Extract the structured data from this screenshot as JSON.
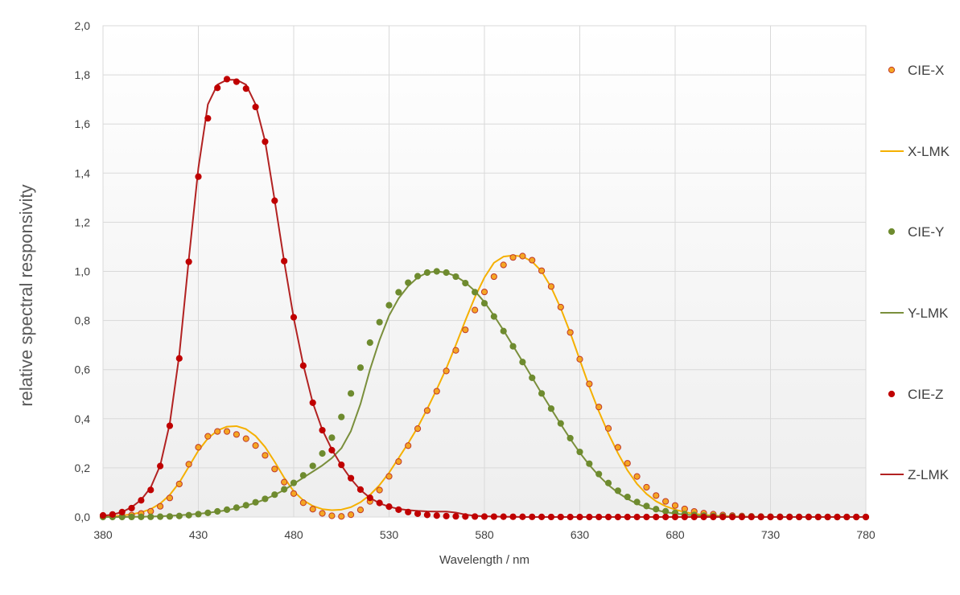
{
  "chart_data": {
    "type": "line",
    "title": "",
    "xlabel": "Wavelength / nm",
    "ylabel": "relative spectral responsivity",
    "xlim": [
      380,
      780
    ],
    "ylim": [
      0,
      2
    ],
    "xticks": [
      380,
      430,
      480,
      530,
      580,
      630,
      680,
      730,
      780
    ],
    "xtick_labels": [
      "380",
      "430",
      "480",
      "530",
      "580",
      "630",
      "680",
      "730",
      "780"
    ],
    "yticks": [
      0,
      0.2,
      0.4,
      0.6,
      0.8,
      1.0,
      1.2,
      1.4,
      1.6,
      1.8,
      2.0
    ],
    "ytick_labels": [
      "0,0",
      "0,2",
      "0,4",
      "0,6",
      "0,8",
      "1,0",
      "1,2",
      "1,4",
      "1,6",
      "1,8",
      "2,0"
    ],
    "grid": true,
    "legend_position": "right",
    "x": [
      380,
      385,
      390,
      395,
      400,
      405,
      410,
      415,
      420,
      425,
      430,
      435,
      440,
      445,
      450,
      455,
      460,
      465,
      470,
      475,
      480,
      485,
      490,
      495,
      500,
      505,
      510,
      515,
      520,
      525,
      530,
      535,
      540,
      545,
      550,
      555,
      560,
      565,
      570,
      575,
      580,
      585,
      590,
      595,
      600,
      605,
      610,
      615,
      620,
      625,
      630,
      635,
      640,
      645,
      650,
      655,
      660,
      665,
      670,
      675,
      680,
      685,
      690,
      695,
      700,
      705,
      710,
      715,
      720,
      725,
      730,
      735,
      740,
      745,
      750,
      755,
      760,
      765,
      770,
      775,
      780
    ],
    "series": [
      {
        "name": "CIE-X",
        "kind": "markers",
        "color": "#f5a623",
        "edge": "#c0392b",
        "values": [
          0.0014,
          0.0022,
          0.0042,
          0.0077,
          0.0143,
          0.0232,
          0.0435,
          0.0776,
          0.1344,
          0.2148,
          0.2839,
          0.3285,
          0.3483,
          0.3481,
          0.3362,
          0.3187,
          0.2908,
          0.2511,
          0.1954,
          0.1421,
          0.0956,
          0.058,
          0.032,
          0.0147,
          0.0049,
          0.0024,
          0.0093,
          0.0291,
          0.0633,
          0.1096,
          0.1655,
          0.2257,
          0.2904,
          0.3597,
          0.4334,
          0.5121,
          0.5945,
          0.6784,
          0.7621,
          0.8425,
          0.9163,
          0.9786,
          1.0263,
          1.0567,
          1.0622,
          1.0456,
          1.0026,
          0.9384,
          0.8544,
          0.7514,
          0.6424,
          0.5419,
          0.4479,
          0.3608,
          0.2835,
          0.2187,
          0.1649,
          0.1212,
          0.0874,
          0.0636,
          0.0468,
          0.0329,
          0.0227,
          0.0158,
          0.0114,
          0.0081,
          0.0058,
          0.0041,
          0.0029,
          0.002,
          0.0014,
          0.001,
          0.0007,
          0.0005,
          0.0003,
          0.0002,
          0.0002,
          0.0001,
          0.0001,
          0.0001,
          0.0
        ]
      },
      {
        "name": "X-LMK",
        "kind": "line",
        "color": "#f5b000",
        "values": [
          0.002,
          0.003,
          0.006,
          0.011,
          0.019,
          0.032,
          0.055,
          0.09,
          0.14,
          0.205,
          0.27,
          0.32,
          0.352,
          0.368,
          0.37,
          0.358,
          0.33,
          0.285,
          0.225,
          0.16,
          0.105,
          0.068,
          0.045,
          0.032,
          0.028,
          0.03,
          0.04,
          0.06,
          0.09,
          0.13,
          0.18,
          0.24,
          0.3,
          0.365,
          0.44,
          0.52,
          0.605,
          0.7,
          0.8,
          0.895,
          0.975,
          1.035,
          1.06,
          1.065,
          1.06,
          1.04,
          1.0,
          0.935,
          0.85,
          0.75,
          0.64,
          0.53,
          0.43,
          0.34,
          0.26,
          0.19,
          0.135,
          0.094,
          0.064,
          0.044,
          0.03,
          0.02,
          0.013,
          0.009,
          0.006,
          0.004,
          0.003,
          0.002,
          0.001,
          0.001,
          0.0,
          0.0,
          0.0,
          0.0,
          0.0,
          0.0,
          0.0,
          0.0,
          0.0,
          0.0,
          0.0
        ]
      },
      {
        "name": "CIE-Y",
        "kind": "markers",
        "color": "#6e8b2f",
        "edge": "#6e8b2f",
        "values": [
          0.0,
          0.0001,
          0.0001,
          0.0002,
          0.0004,
          0.0006,
          0.0012,
          0.0022,
          0.004,
          0.0073,
          0.0116,
          0.0168,
          0.023,
          0.0298,
          0.038,
          0.048,
          0.06,
          0.0739,
          0.091,
          0.1126,
          0.139,
          0.1693,
          0.208,
          0.2586,
          0.323,
          0.4073,
          0.503,
          0.6082,
          0.71,
          0.7932,
          0.862,
          0.9149,
          0.954,
          0.9803,
          0.995,
          1.0,
          0.995,
          0.9786,
          0.952,
          0.9154,
          0.87,
          0.8163,
          0.757,
          0.6949,
          0.631,
          0.5668,
          0.503,
          0.4412,
          0.381,
          0.321,
          0.265,
          0.217,
          0.175,
          0.1382,
          0.107,
          0.0816,
          0.061,
          0.0446,
          0.032,
          0.0232,
          0.017,
          0.0119,
          0.0082,
          0.0057,
          0.0041,
          0.0029,
          0.0021,
          0.0015,
          0.001,
          0.0007,
          0.0005,
          0.0004,
          0.0003,
          0.0002,
          0.0001,
          0.0001,
          0.0001,
          0.0,
          0.0,
          0.0,
          0.0
        ]
      },
      {
        "name": "Y-LMK",
        "kind": "line",
        "color": "#7a8f3c",
        "values": [
          0.0,
          0.0,
          0.0,
          0.001,
          0.001,
          0.002,
          0.003,
          0.005,
          0.007,
          0.01,
          0.013,
          0.017,
          0.022,
          0.028,
          0.036,
          0.046,
          0.058,
          0.072,
          0.09,
          0.11,
          0.135,
          0.16,
          0.185,
          0.21,
          0.24,
          0.28,
          0.35,
          0.46,
          0.6,
          0.72,
          0.82,
          0.89,
          0.94,
          0.975,
          0.995,
          1.0,
          0.995,
          0.98,
          0.955,
          0.92,
          0.875,
          0.82,
          0.76,
          0.697,
          0.633,
          0.568,
          0.503,
          0.44,
          0.378,
          0.318,
          0.262,
          0.212,
          0.168,
          0.13,
          0.099,
          0.074,
          0.054,
          0.039,
          0.028,
          0.02,
          0.014,
          0.01,
          0.007,
          0.005,
          0.003,
          0.002,
          0.001,
          0.001,
          0.001,
          0.0,
          0.0,
          0.0,
          0.0,
          0.0,
          0.0,
          0.0,
          0.0,
          0.0,
          0.0,
          0.0,
          0.0
        ]
      },
      {
        "name": "CIE-Z",
        "kind": "markers",
        "color": "#c00000",
        "edge": "#c00000",
        "values": [
          0.0065,
          0.0105,
          0.0201,
          0.0362,
          0.0679,
          0.1102,
          0.2074,
          0.3713,
          0.6456,
          1.0391,
          1.3856,
          1.623,
          1.7471,
          1.7826,
          1.7721,
          1.7441,
          1.6692,
          1.5281,
          1.2876,
          1.0419,
          0.813,
          0.6162,
          0.4652,
          0.3533,
          0.272,
          0.2123,
          0.1582,
          0.1117,
          0.0782,
          0.0573,
          0.0422,
          0.0298,
          0.0203,
          0.0134,
          0.0087,
          0.0057,
          0.0039,
          0.0027,
          0.0021,
          0.0018,
          0.0017,
          0.0014,
          0.0011,
          0.001,
          0.0008,
          0.0006,
          0.0003,
          0.0002,
          0.0002,
          0.0001,
          0.0,
          0.0,
          0.0,
          0.0,
          0.0,
          0.0,
          0.0,
          0.0,
          0.0,
          0.0,
          0.0,
          0.0,
          0.0,
          0.0,
          0.0,
          0.0,
          0.0,
          0.0,
          0.0,
          0.0,
          0.0,
          0.0,
          0.0,
          0.0,
          0.0,
          0.0,
          0.0,
          0.0,
          0.0,
          0.0,
          0.0
        ]
      },
      {
        "name": "Z-LMK",
        "kind": "line",
        "color": "#b22222",
        "values": [
          0.005,
          0.01,
          0.02,
          0.04,
          0.07,
          0.12,
          0.21,
          0.38,
          0.66,
          1.05,
          1.42,
          1.68,
          1.76,
          1.78,
          1.78,
          1.76,
          1.68,
          1.53,
          1.29,
          1.04,
          0.81,
          0.62,
          0.465,
          0.355,
          0.275,
          0.21,
          0.155,
          0.11,
          0.078,
          0.056,
          0.042,
          0.033,
          0.028,
          0.025,
          0.023,
          0.022,
          0.022,
          0.018,
          0.01,
          0.005,
          0.003,
          0.002,
          0.001,
          0.001,
          0.0,
          0.0,
          0.0,
          0.0,
          0.0,
          0.0,
          0.0,
          0.0,
          0.0,
          0.0,
          0.0,
          0.0,
          0.0,
          0.0,
          0.0,
          0.0,
          0.0,
          0.0,
          0.0,
          0.0,
          0.0,
          0.0,
          0.0,
          0.0,
          0.0,
          0.0,
          0.0,
          0.0,
          0.0,
          0.0,
          0.0,
          0.0,
          0.0,
          0.0,
          0.0,
          0.0,
          0.0
        ]
      }
    ]
  }
}
